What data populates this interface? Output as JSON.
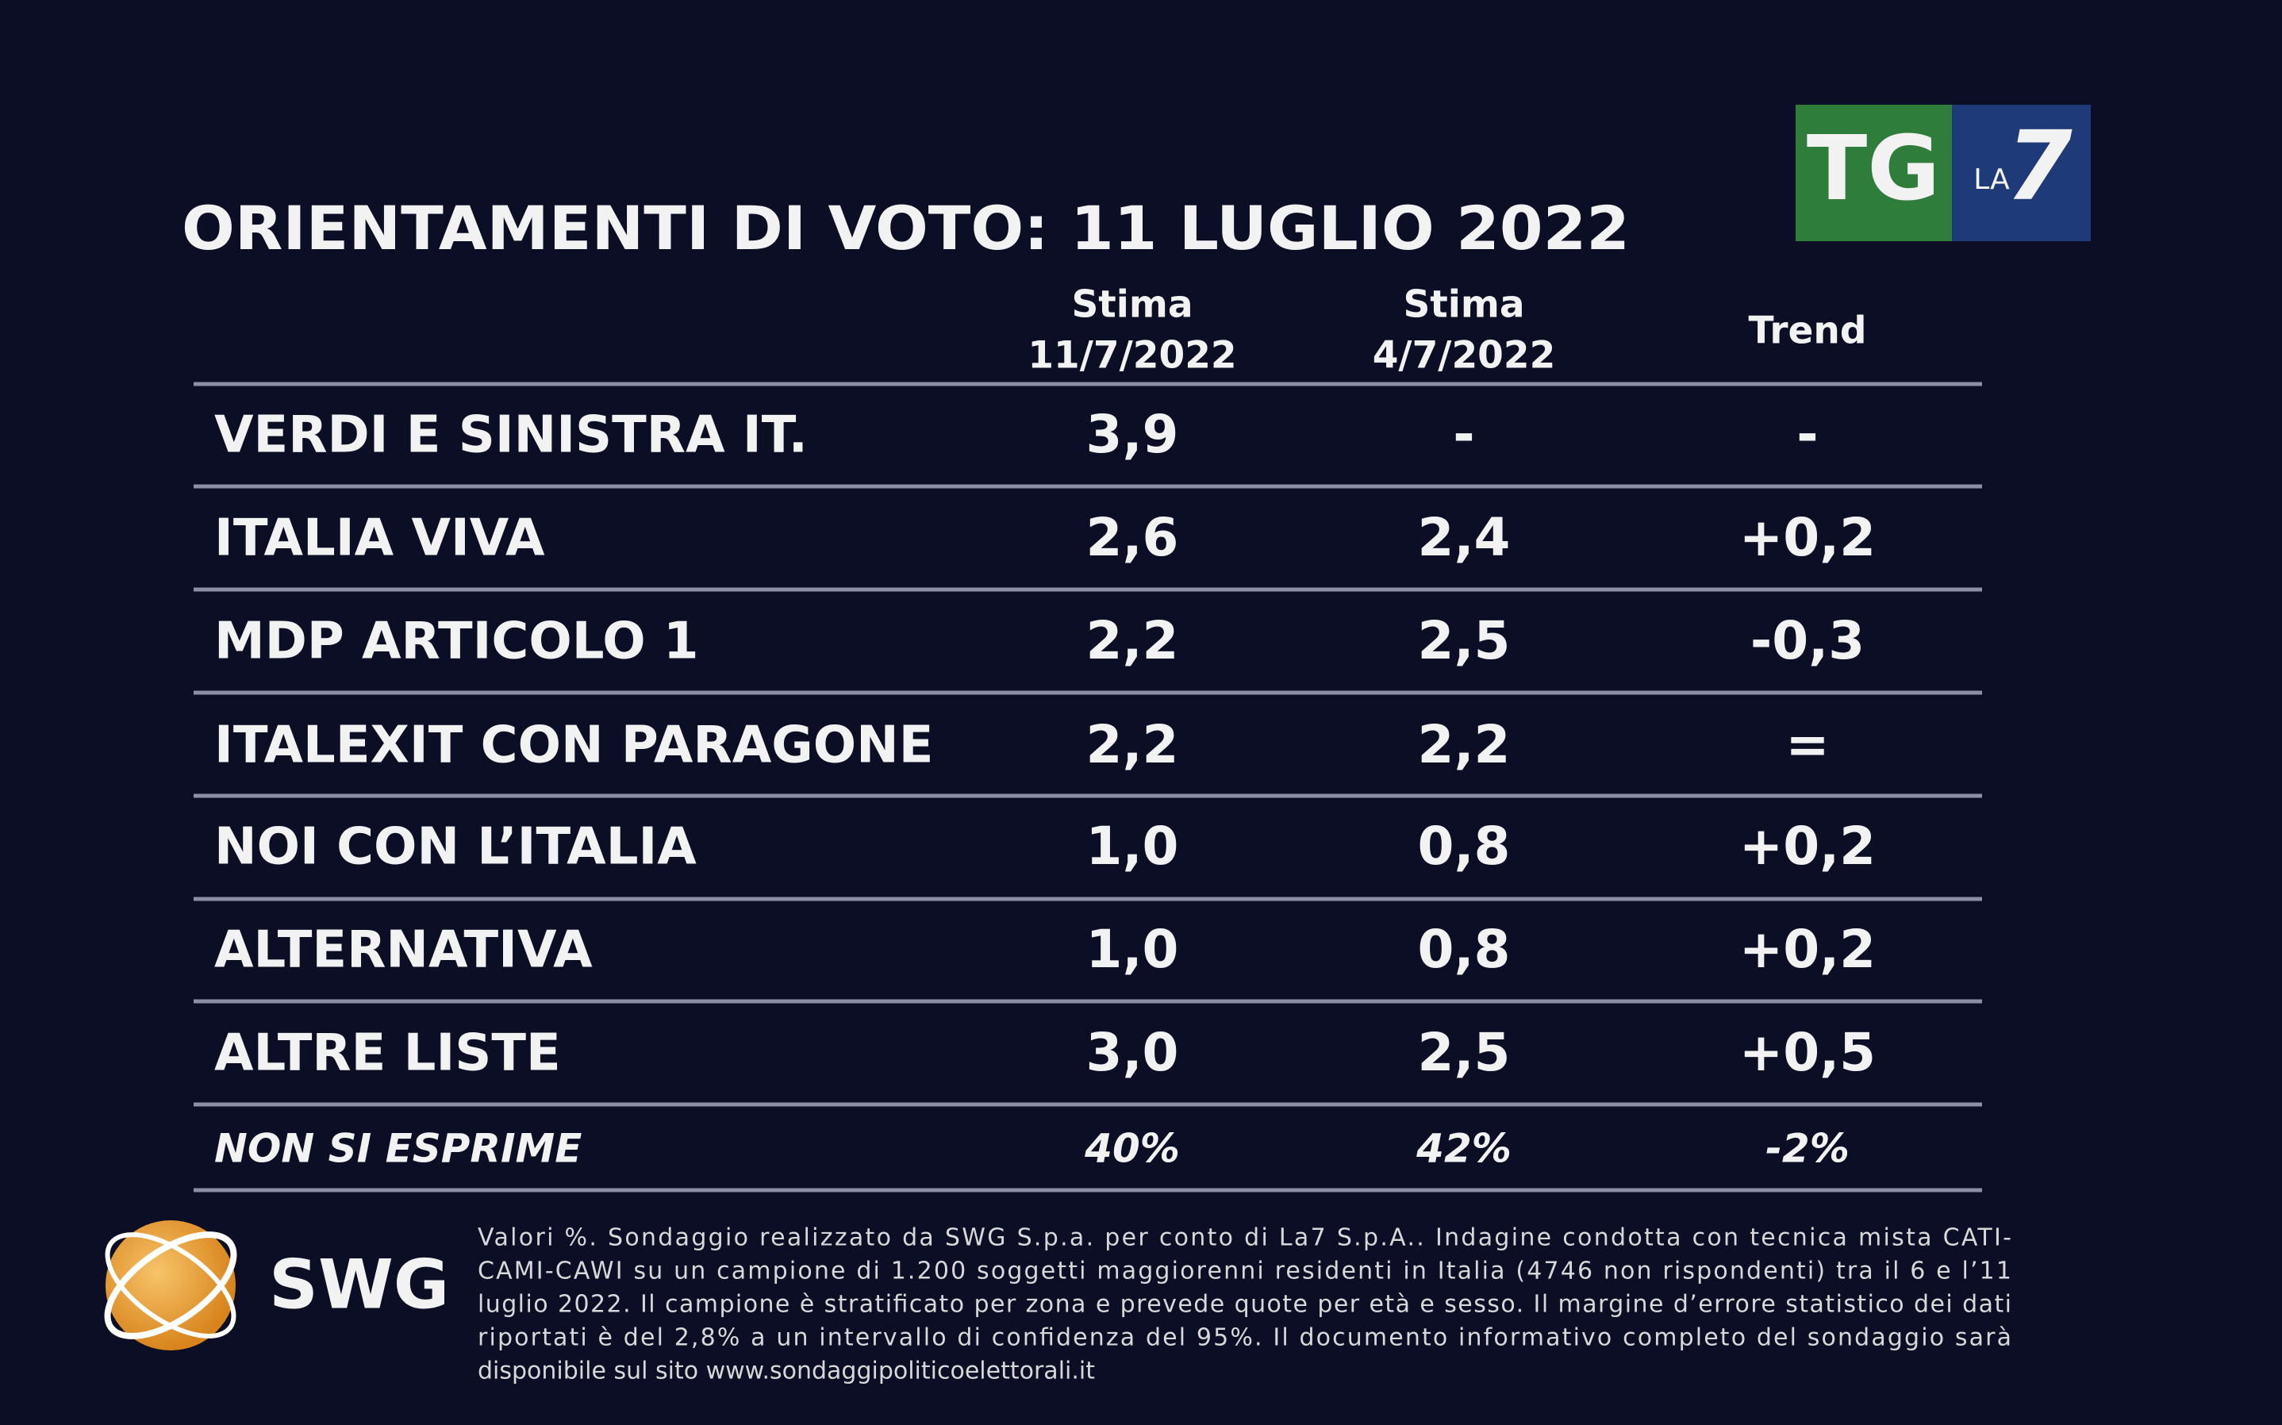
{
  "header": {
    "title": "ORIENTAMENTI DI VOTO: 11 LUGLIO 2022",
    "logo": {
      "tg": "TG",
      "la": "LA",
      "seven": "7"
    }
  },
  "table": {
    "columns": [
      {
        "line1": "Stima",
        "line2": "11/7/2022"
      },
      {
        "line1": "Stima",
        "line2": "4/7/2022"
      },
      {
        "line1": "Trend"
      }
    ],
    "rows": [
      [
        "VERDI E SINISTRA IT.",
        "3,9",
        "-",
        "-"
      ],
      [
        "ITALIA VIVA",
        "2,6",
        "2,4",
        "+0,2"
      ],
      [
        "MDP ARTICOLO 1",
        "2,2",
        "2,5",
        "-0,3"
      ],
      [
        "ITALEXIT CON PARAGONE",
        "2,2",
        "2,2",
        "="
      ],
      [
        "NOI CON L’ITALIA",
        "1,0",
        "0,8",
        "+0,2"
      ],
      [
        "ALTERNATIVA",
        "1,0",
        "0,8",
        "+0,2"
      ],
      [
        "ALTRE LISTE",
        "3,0",
        "2,5",
        "+0,5"
      ]
    ],
    "footer_row": [
      "NON SI ESPRIME",
      "40%",
      "42%",
      "-2%"
    ]
  },
  "footer": {
    "brand": "SWG",
    "note_lines": [
      "Valori %. Sondaggio realizzato da SWG S.p.a. per conto di La7 S.p.A.. Indagine condotta con tecnica mista CATI-",
      "CAMI-CAWI su un campione di 1.200 soggetti maggiorenni residenti in Italia (4746 non rispondenti) tra il 6 e l’11",
      "luglio 2022. Il campione è stratificato per zona e prevede quote per età e sesso. Il margine d’errore statistico dei dati",
      "riportati è del 2,8% a un intervallo di confidenza del 95%. Il documento informativo completo del sondaggio sarà",
      "disponibile sul sito www.sondaggipoliticoelettorali.it"
    ]
  }
}
